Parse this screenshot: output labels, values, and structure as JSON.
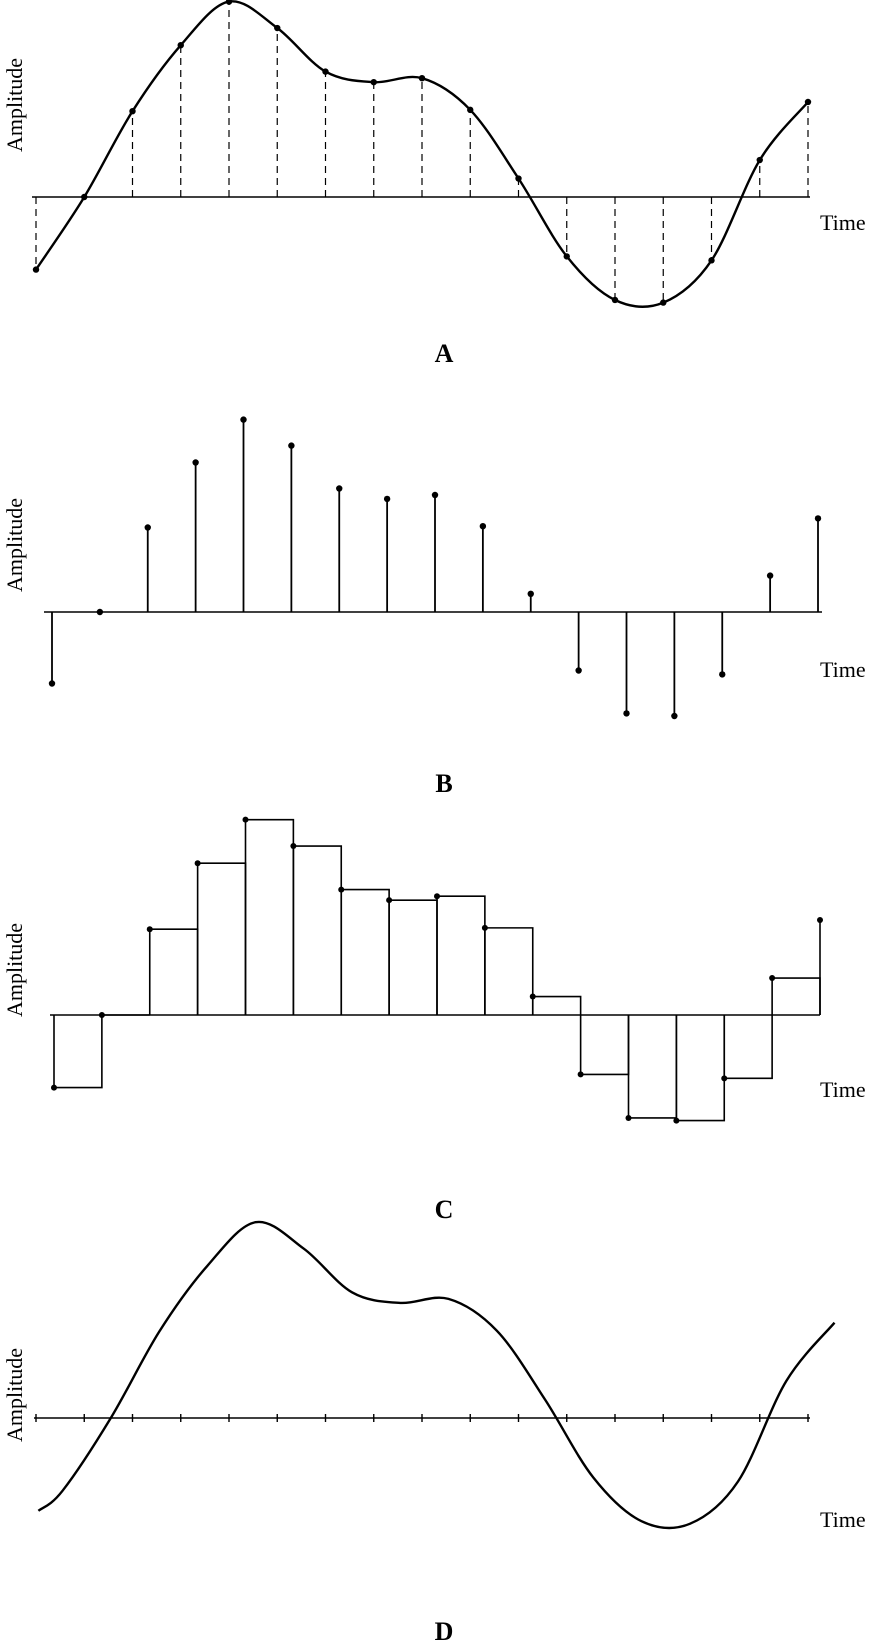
{
  "chart_data": [
    {
      "type": "line",
      "panel": "A",
      "panel_label": "A",
      "ylabel": "Amplitude",
      "xlabel": "Time",
      "description_style": "continuous waveform with dashed sample lines and sample dots",
      "series": [
        {
          "samples": [
            -0.55,
            0.0,
            0.65,
            1.15,
            1.48,
            1.28,
            0.95,
            0.87,
            0.9,
            0.66,
            0.14,
            -0.45,
            -0.78,
            -0.8,
            -0.48,
            0.28,
            0.72
          ]
        }
      ]
    },
    {
      "type": "scatter",
      "panel": "B",
      "panel_label": "B",
      "ylabel": "Amplitude",
      "xlabel": "Time",
      "description_style": "discrete samples drawn as vertical stems with dots",
      "series": [
        {
          "samples": [
            -0.55,
            0.0,
            0.65,
            1.15,
            1.48,
            1.28,
            0.95,
            0.87,
            0.9,
            0.66,
            0.14,
            -0.45,
            -0.78,
            -0.8,
            -0.48,
            0.28,
            0.72
          ]
        }
      ]
    },
    {
      "type": "line",
      "panel": "C",
      "panel_label": "C",
      "ylabel": "Amplitude",
      "xlabel": "Time",
      "description_style": "sample-and-hold staircase",
      "series": [
        {
          "samples": [
            -0.55,
            0.0,
            0.65,
            1.15,
            1.48,
            1.28,
            0.95,
            0.87,
            0.9,
            0.66,
            0.14,
            -0.45,
            -0.78,
            -0.8,
            -0.48,
            0.28,
            0.72
          ]
        }
      ]
    },
    {
      "type": "line",
      "panel": "D",
      "panel_label": "D",
      "ylabel": "Amplitude",
      "xlabel": "Time",
      "description_style": "reconstructed smooth waveform with tick marks on time axis",
      "series": [
        {
          "samples": [
            -0.55,
            0.0,
            0.65,
            1.15,
            1.48,
            1.28,
            0.95,
            0.87,
            0.9,
            0.66,
            0.14,
            -0.45,
            -0.78,
            -0.8,
            -0.48,
            0.28,
            0.72
          ]
        }
      ]
    }
  ],
  "colors": {
    "ink": "#000000",
    "background": "#ffffff"
  }
}
